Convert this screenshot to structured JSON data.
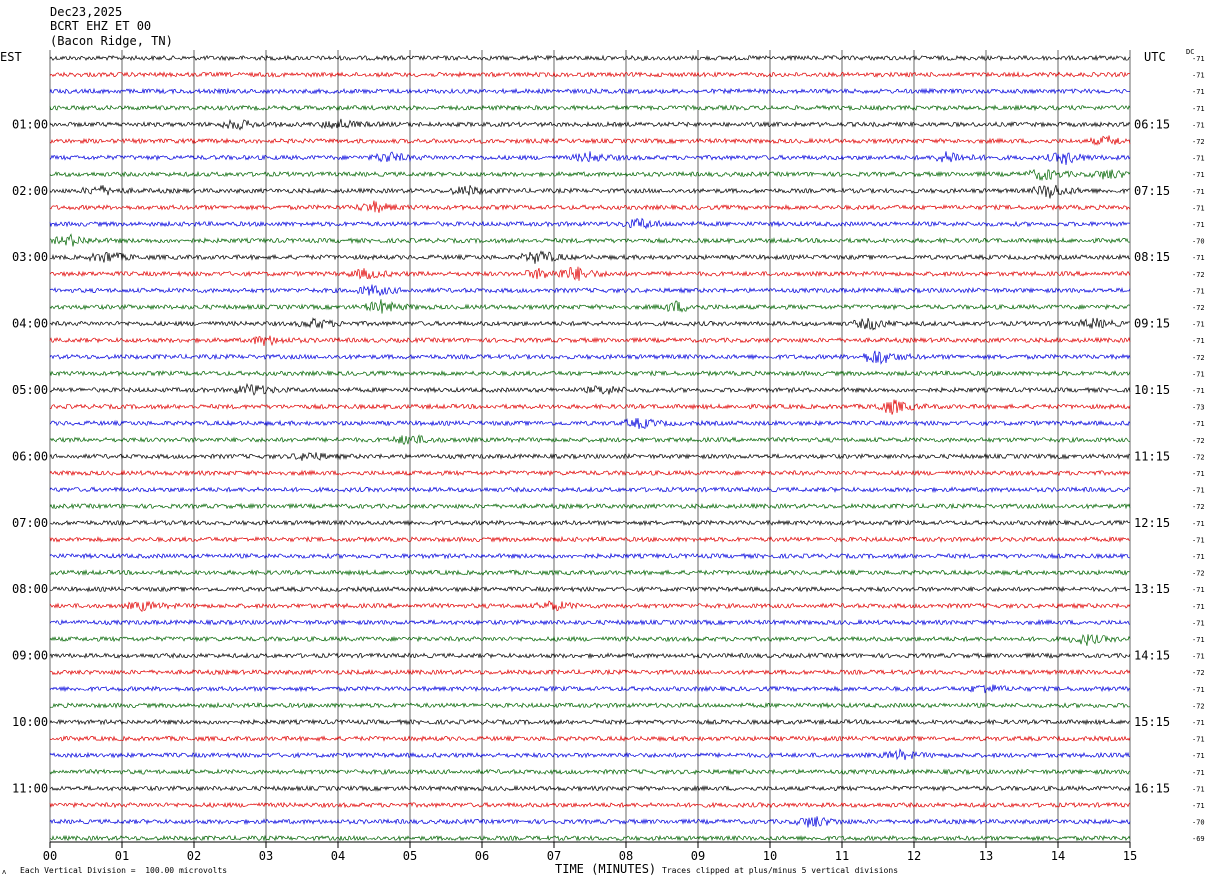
{
  "header": {
    "date": "Dec23,2025",
    "station": "BCRT EHZ ET 00",
    "location": "(Bacon Ridge, TN)"
  },
  "tz_left": "EST",
  "tz_right": "UTC",
  "dc_label": "DC",
  "footer": {
    "scale_note": "Each Vertical Division =  100.00 microvolts",
    "clip_note": "Traces clipped at plus/minus 5 vertical divisions",
    "mark": "ᴧ"
  },
  "colors": {
    "trace_cycle": [
      "#000000",
      "#e00000",
      "#0000dd",
      "#006400"
    ],
    "grid": "#000000"
  },
  "chart_data": {
    "type": "line",
    "xlabel": "TIME (MINUTES)",
    "xlim": [
      0,
      15
    ],
    "x_ticks": [
      "00",
      "01",
      "02",
      "03",
      "04",
      "05",
      "06",
      "07",
      "08",
      "09",
      "10",
      "11",
      "12",
      "13",
      "14",
      "15"
    ],
    "rows": 48,
    "left_hour_labels": [
      {
        "row": 4,
        "label": "01:00"
      },
      {
        "row": 8,
        "label": "02:00"
      },
      {
        "row": 12,
        "label": "03:00"
      },
      {
        "row": 16,
        "label": "04:00"
      },
      {
        "row": 20,
        "label": "05:00"
      },
      {
        "row": 24,
        "label": "06:00"
      },
      {
        "row": 28,
        "label": "07:00"
      },
      {
        "row": 32,
        "label": "08:00"
      },
      {
        "row": 36,
        "label": "09:00"
      },
      {
        "row": 40,
        "label": "10:00"
      },
      {
        "row": 44,
        "label": "11:00"
      }
    ],
    "right_hour_labels": [
      {
        "row": 4,
        "label": "06:15"
      },
      {
        "row": 8,
        "label": "07:15"
      },
      {
        "row": 12,
        "label": "08:15"
      },
      {
        "row": 16,
        "label": "09:15"
      },
      {
        "row": 20,
        "label": "10:15"
      },
      {
        "row": 24,
        "label": "11:15"
      },
      {
        "row": 28,
        "label": "12:15"
      },
      {
        "row": 32,
        "label": "13:15"
      },
      {
        "row": 36,
        "label": "14:15"
      },
      {
        "row": 40,
        "label": "15:15"
      },
      {
        "row": 44,
        "label": "16:15"
      }
    ],
    "dc_offsets": [
      "-71",
      "-71",
      "-71",
      "-71",
      "-71",
      "-72",
      "-71",
      "-71",
      "-71",
      "-71",
      "-71",
      "-70",
      "-71",
      "-72",
      "-71",
      "-72",
      "-71",
      "-71",
      "-72",
      "-71",
      "-71",
      "-73",
      "-71",
      "-72",
      "-72",
      "-71",
      "-71",
      "-72",
      "-71",
      "-71",
      "-71",
      "-72",
      "-71",
      "-71",
      "-71",
      "-71",
      "-71",
      "-72",
      "-71",
      "-72",
      "-71",
      "-71",
      "-71",
      "-71",
      "-71",
      "-71",
      "-70",
      "-69"
    ],
    "events": [
      {
        "row": 4,
        "t": 2.6,
        "amp": 2.0
      },
      {
        "row": 4,
        "t": 4.0,
        "amp": 2.2
      },
      {
        "row": 5,
        "t": 14.7,
        "amp": 1.8
      },
      {
        "row": 6,
        "t": 4.7,
        "amp": 2.2
      },
      {
        "row": 6,
        "t": 7.5,
        "amp": 2.0
      },
      {
        "row": 6,
        "t": 12.5,
        "amp": 2.6
      },
      {
        "row": 6,
        "t": 14.1,
        "amp": 2.6
      },
      {
        "row": 7,
        "t": 13.8,
        "amp": 2.4
      },
      {
        "row": 7,
        "t": 14.7,
        "amp": 2.0
      },
      {
        "row": 8,
        "t": 0.7,
        "amp": 2.0
      },
      {
        "row": 8,
        "t": 5.8,
        "amp": 2.0
      },
      {
        "row": 8,
        "t": 13.9,
        "amp": 3.2
      },
      {
        "row": 9,
        "t": 4.5,
        "amp": 2.2
      },
      {
        "row": 10,
        "t": 8.2,
        "amp": 2.2
      },
      {
        "row": 11,
        "t": 0.3,
        "amp": 2.2
      },
      {
        "row": 12,
        "t": 0.8,
        "amp": 2.4
      },
      {
        "row": 12,
        "t": 6.8,
        "amp": 3.0
      },
      {
        "row": 13,
        "t": 4.4,
        "amp": 2.0
      },
      {
        "row": 13,
        "t": 6.8,
        "amp": 2.0
      },
      {
        "row": 13,
        "t": 7.3,
        "amp": 3.0
      },
      {
        "row": 14,
        "t": 4.5,
        "amp": 2.2
      },
      {
        "row": 15,
        "t": 4.6,
        "amp": 2.6
      },
      {
        "row": 15,
        "t": 8.7,
        "amp": 2.2
      },
      {
        "row": 16,
        "t": 3.7,
        "amp": 2.0
      },
      {
        "row": 16,
        "t": 11.4,
        "amp": 2.4
      },
      {
        "row": 16,
        "t": 14.5,
        "amp": 2.0
      },
      {
        "row": 17,
        "t": 3.0,
        "amp": 2.0
      },
      {
        "row": 18,
        "t": 11.5,
        "amp": 3.4
      },
      {
        "row": 20,
        "t": 2.8,
        "amp": 2.6
      },
      {
        "row": 20,
        "t": 7.7,
        "amp": 1.8
      },
      {
        "row": 21,
        "t": 11.7,
        "amp": 3.0
      },
      {
        "row": 22,
        "t": 8.2,
        "amp": 2.0
      },
      {
        "row": 23,
        "t": 5.0,
        "amp": 2.2
      },
      {
        "row": 24,
        "t": 3.6,
        "amp": 1.8
      },
      {
        "row": 33,
        "t": 1.3,
        "amp": 1.8
      },
      {
        "row": 33,
        "t": 7.0,
        "amp": 2.0
      },
      {
        "row": 35,
        "t": 14.4,
        "amp": 2.2
      },
      {
        "row": 38,
        "t": 13.0,
        "amp": 1.8
      },
      {
        "row": 42,
        "t": 11.8,
        "amp": 1.8
      },
      {
        "row": 46,
        "t": 10.6,
        "amp": 2.6
      }
    ]
  }
}
